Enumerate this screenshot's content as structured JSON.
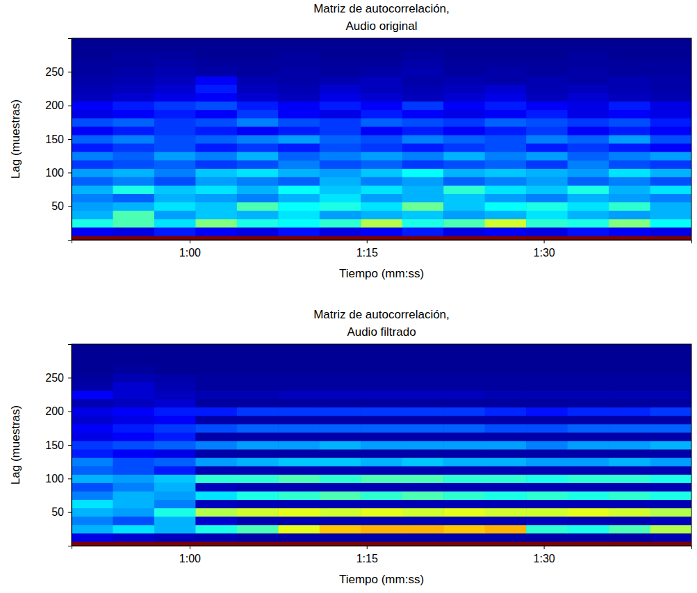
{
  "chart_data": [
    {
      "type": "heatmap",
      "title": [
        "Matriz de autocorrelación,",
        "Audio original"
      ],
      "x_label": "Tiempo (mm:ss)",
      "y_label": "Lag (muestras)",
      "color": "jet",
      "color_range": [
        0,
        1
      ],
      "xlim": [
        50,
        102.5
      ],
      "ylim": [
        0,
        300
      ],
      "xticks": [
        {
          "value": 60,
          "label": "1:00"
        },
        {
          "value": 75,
          "label": "1:15"
        },
        {
          "value": 90,
          "label": "1:30"
        }
      ],
      "yticks": [
        50,
        100,
        150,
        200,
        250
      ],
      "x": [
        51.75,
        55.25,
        58.75,
        62.25,
        65.75,
        69.25,
        72.75,
        76.25,
        79.75,
        83.25,
        86.75,
        90.25,
        93.75,
        97.25,
        100.75
      ],
      "y": [
        0,
        12.5,
        25,
        37.5,
        50,
        62.5,
        75,
        87.5,
        100,
        112.5,
        125,
        137.5,
        150,
        162.5,
        175,
        187.5,
        200,
        212.5,
        225,
        237.5,
        250,
        262.5,
        275,
        287.5,
        300
      ],
      "values": [
        [
          1,
          1,
          1,
          1,
          1,
          1,
          1,
          1,
          1,
          1,
          1,
          1,
          1,
          1,
          1
        ],
        [
          0.12,
          0.1,
          0.15,
          0.12,
          0.1,
          0.14,
          0.1,
          0.12,
          0.15,
          0.1,
          0.12,
          0.1,
          0.14,
          0.12,
          0.1
        ],
        [
          0.4,
          0.45,
          0.35,
          0.5,
          0.4,
          0.38,
          0.42,
          0.55,
          0.4,
          0.45,
          0.58,
          0.42,
          0.4,
          0.5,
          0.38
        ],
        [
          0.3,
          0.45,
          0.28,
          0.32,
          0.3,
          0.35,
          0.28,
          0.3,
          0.32,
          0.28,
          0.3,
          0.35,
          0.3,
          0.28,
          0.3
        ],
        [
          0.28,
          0.3,
          0.35,
          0.32,
          0.45,
          0.38,
          0.4,
          0.35,
          0.48,
          0.32,
          0.38,
          0.4,
          0.35,
          0.42,
          0.3
        ],
        [
          0.25,
          0.22,
          0.3,
          0.28,
          0.25,
          0.3,
          0.35,
          0.28,
          0.3,
          0.32,
          0.28,
          0.25,
          0.3,
          0.28,
          0.25
        ],
        [
          0.3,
          0.4,
          0.32,
          0.35,
          0.3,
          0.38,
          0.32,
          0.35,
          0.3,
          0.42,
          0.35,
          0.32,
          0.4,
          0.3,
          0.35
        ],
        [
          0.22,
          0.25,
          0.2,
          0.28,
          0.25,
          0.22,
          0.3,
          0.25,
          0.28,
          0.22,
          0.25,
          0.28,
          0.22,
          0.25,
          0.2
        ],
        [
          0.28,
          0.3,
          0.25,
          0.32,
          0.35,
          0.3,
          0.28,
          0.32,
          0.38,
          0.3,
          0.32,
          0.3,
          0.28,
          0.35,
          0.3
        ],
        [
          0.18,
          0.2,
          0.22,
          0.18,
          0.2,
          0.25,
          0.2,
          0.22,
          0.18,
          0.2,
          0.22,
          0.18,
          0.25,
          0.2,
          0.18
        ],
        [
          0.25,
          0.22,
          0.28,
          0.25,
          0.3,
          0.22,
          0.25,
          0.28,
          0.25,
          0.3,
          0.25,
          0.28,
          0.22,
          0.25,
          0.28
        ],
        [
          0.15,
          0.18,
          0.2,
          0.15,
          0.18,
          0.15,
          0.2,
          0.18,
          0.15,
          0.18,
          0.2,
          0.15,
          0.18,
          0.15,
          0.12
        ],
        [
          0.22,
          0.25,
          0.2,
          0.22,
          0.25,
          0.28,
          0.22,
          0.2,
          0.25,
          0.22,
          0.2,
          0.25,
          0.22,
          0.28,
          0.2
        ],
        [
          0.12,
          0.15,
          0.18,
          0.15,
          0.12,
          0.15,
          0.18,
          0.12,
          0.15,
          0.12,
          0.15,
          0.18,
          0.12,
          0.15,
          0.12
        ],
        [
          0.2,
          0.22,
          0.18,
          0.2,
          0.25,
          0.2,
          0.18,
          0.22,
          0.2,
          0.18,
          0.22,
          0.2,
          0.18,
          0.2,
          0.15
        ],
        [
          0.1,
          0.12,
          0.15,
          0.12,
          0.18,
          0.12,
          0.1,
          0.15,
          0.12,
          0.1,
          0.12,
          0.15,
          0.1,
          0.12,
          0.1
        ],
        [
          0.12,
          0.15,
          0.18,
          0.2,
          0.15,
          0.12,
          0.15,
          0.12,
          0.18,
          0.12,
          0.15,
          0.12,
          0.1,
          0.15,
          0.1
        ],
        [
          0.06,
          0.08,
          0.1,
          0.12,
          0.08,
          0.06,
          0.1,
          0.08,
          0.06,
          0.08,
          0.1,
          0.06,
          0.08,
          0.06,
          0.05
        ],
        [
          0.05,
          0.06,
          0.08,
          0.15,
          0.06,
          0.05,
          0.08,
          0.06,
          0.05,
          0.06,
          0.08,
          0.05,
          0.06,
          0.05,
          0.04
        ],
        [
          0.04,
          0.05,
          0.06,
          0.12,
          0.05,
          0.04,
          0.05,
          0.06,
          0.04,
          0.05,
          0.04,
          0.05,
          0.04,
          0.05,
          0.04
        ],
        [
          0.03,
          0.04,
          0.05,
          0.04,
          0.03,
          0.04,
          0.03,
          0.04,
          0.05,
          0.03,
          0.04,
          0.03,
          0.04,
          0.03,
          0.03
        ],
        [
          0.03,
          0.03,
          0.04,
          0.03,
          0.03,
          0.03,
          0.03,
          0.03,
          0.04,
          0.03,
          0.03,
          0.03,
          0.03,
          0.03,
          0.03
        ],
        [
          0.02,
          0.03,
          0.03,
          0.02,
          0.02,
          0.03,
          0.02,
          0.02,
          0.03,
          0.02,
          0.02,
          0.02,
          0.03,
          0.02,
          0.02
        ],
        [
          0.02,
          0.02,
          0.02,
          0.02,
          0.02,
          0.02,
          0.02,
          0.02,
          0.02,
          0.02,
          0.02,
          0.02,
          0.02,
          0.02,
          0.02
        ],
        [
          0.02,
          0.02,
          0.02,
          0.02,
          0.02,
          0.02,
          0.02,
          0.02,
          0.02,
          0.02,
          0.02,
          0.02,
          0.02,
          0.02,
          0.02
        ]
      ]
    },
    {
      "type": "heatmap",
      "title": [
        "Matriz de autocorrelación,",
        "Audio filtrado"
      ],
      "x_label": "Tiempo (mm:ss)",
      "y_label": "Lag (muestras)",
      "color": "jet",
      "color_range": [
        0,
        1
      ],
      "xlim": [
        50,
        102.5
      ],
      "ylim": [
        0,
        300
      ],
      "xticks": [
        {
          "value": 60,
          "label": "1:00"
        },
        {
          "value": 75,
          "label": "1:15"
        },
        {
          "value": 90,
          "label": "1:30"
        }
      ],
      "yticks": [
        50,
        100,
        150,
        200,
        250
      ],
      "x": [
        51.75,
        55.25,
        58.75,
        62.25,
        65.75,
        69.25,
        72.75,
        76.25,
        79.75,
        83.25,
        86.75,
        90.25,
        93.75,
        97.25,
        100.75
      ],
      "y": [
        0,
        12.5,
        25,
        37.5,
        50,
        62.5,
        75,
        87.5,
        100,
        112.5,
        125,
        137.5,
        150,
        162.5,
        175,
        187.5,
        200,
        212.5,
        225,
        237.5,
        250,
        262.5,
        275,
        287.5,
        300
      ],
      "values": [
        [
          1,
          1,
          1,
          1,
          1,
          1,
          1,
          1,
          1,
          1,
          1,
          1,
          1,
          1,
          1
        ],
        [
          0.1,
          0.08,
          0.06,
          0.05,
          0.04,
          0.04,
          0.04,
          0.04,
          0.04,
          0.04,
          0.04,
          0.04,
          0.04,
          0.04,
          0.05
        ],
        [
          0.3,
          0.35,
          0.3,
          0.4,
          0.45,
          0.6,
          0.68,
          0.7,
          0.7,
          0.68,
          0.7,
          0.42,
          0.4,
          0.45,
          0.55
        ],
        [
          0.25,
          0.2,
          0.3,
          0.08,
          0.05,
          0.05,
          0.05,
          0.05,
          0.05,
          0.05,
          0.05,
          0.06,
          0.05,
          0.05,
          0.06
        ],
        [
          0.3,
          0.28,
          0.4,
          0.55,
          0.58,
          0.6,
          0.58,
          0.6,
          0.58,
          0.6,
          0.58,
          0.58,
          0.6,
          0.58,
          0.55
        ],
        [
          0.35,
          0.3,
          0.25,
          0.06,
          0.05,
          0.05,
          0.05,
          0.05,
          0.05,
          0.05,
          0.05,
          0.05,
          0.05,
          0.05,
          0.05
        ],
        [
          0.25,
          0.3,
          0.28,
          0.35,
          0.4,
          0.42,
          0.45,
          0.42,
          0.45,
          0.42,
          0.4,
          0.42,
          0.4,
          0.42,
          0.4
        ],
        [
          0.2,
          0.25,
          0.3,
          0.06,
          0.05,
          0.05,
          0.05,
          0.05,
          0.05,
          0.05,
          0.05,
          0.05,
          0.05,
          0.05,
          0.05
        ],
        [
          0.3,
          0.28,
          0.32,
          0.42,
          0.42,
          0.45,
          0.42,
          0.45,
          0.45,
          0.42,
          0.42,
          0.4,
          0.42,
          0.42,
          0.4
        ],
        [
          0.22,
          0.2,
          0.15,
          0.05,
          0.05,
          0.05,
          0.05,
          0.05,
          0.05,
          0.05,
          0.05,
          0.05,
          0.05,
          0.05,
          0.05
        ],
        [
          0.25,
          0.2,
          0.22,
          0.28,
          0.3,
          0.32,
          0.32,
          0.3,
          0.32,
          0.3,
          0.3,
          0.28,
          0.28,
          0.3,
          0.28
        ],
        [
          0.15,
          0.12,
          0.1,
          0.04,
          0.04,
          0.04,
          0.04,
          0.04,
          0.04,
          0.04,
          0.04,
          0.04,
          0.04,
          0.04,
          0.04
        ],
        [
          0.18,
          0.2,
          0.22,
          0.25,
          0.28,
          0.28,
          0.3,
          0.28,
          0.28,
          0.28,
          0.28,
          0.25,
          0.28,
          0.28,
          0.3
        ],
        [
          0.1,
          0.12,
          0.15,
          0.04,
          0.04,
          0.04,
          0.04,
          0.04,
          0.04,
          0.04,
          0.04,
          0.04,
          0.04,
          0.04,
          0.04
        ],
        [
          0.12,
          0.15,
          0.18,
          0.2,
          0.22,
          0.22,
          0.22,
          0.22,
          0.22,
          0.22,
          0.2,
          0.2,
          0.22,
          0.22,
          0.22
        ],
        [
          0.08,
          0.1,
          0.12,
          0.04,
          0.04,
          0.04,
          0.04,
          0.04,
          0.04,
          0.04,
          0.04,
          0.04,
          0.04,
          0.04,
          0.04
        ],
        [
          0.1,
          0.12,
          0.15,
          0.15,
          0.18,
          0.18,
          0.18,
          0.18,
          0.18,
          0.18,
          0.16,
          0.14,
          0.16,
          0.16,
          0.18
        ],
        [
          0.05,
          0.06,
          0.08,
          0.03,
          0.03,
          0.03,
          0.03,
          0.03,
          0.03,
          0.03,
          0.03,
          0.03,
          0.03,
          0.03,
          0.03
        ],
        [
          0.12,
          0.08,
          0.06,
          0.05,
          0.05,
          0.06,
          0.06,
          0.06,
          0.06,
          0.06,
          0.05,
          0.05,
          0.05,
          0.05,
          0.05
        ],
        [
          0.04,
          0.08,
          0.05,
          0.03,
          0.03,
          0.03,
          0.03,
          0.03,
          0.03,
          0.03,
          0.03,
          0.03,
          0.03,
          0.03,
          0.03
        ],
        [
          0.03,
          0.05,
          0.04,
          0.03,
          0.03,
          0.03,
          0.03,
          0.03,
          0.03,
          0.03,
          0.03,
          0.03,
          0.03,
          0.03,
          0.03
        ],
        [
          0.02,
          0.03,
          0.02,
          0.02,
          0.02,
          0.02,
          0.02,
          0.02,
          0.02,
          0.02,
          0.02,
          0.02,
          0.02,
          0.02,
          0.02
        ],
        [
          0.02,
          0.02,
          0.02,
          0.02,
          0.02,
          0.02,
          0.02,
          0.02,
          0.02,
          0.02,
          0.02,
          0.02,
          0.02,
          0.02,
          0.02
        ],
        [
          0.02,
          0.02,
          0.02,
          0.02,
          0.02,
          0.02,
          0.02,
          0.02,
          0.02,
          0.02,
          0.02,
          0.02,
          0.02,
          0.02,
          0.02
        ],
        [
          0.02,
          0.02,
          0.02,
          0.02,
          0.02,
          0.02,
          0.02,
          0.02,
          0.02,
          0.02,
          0.02,
          0.02,
          0.02,
          0.02,
          0.02
        ]
      ]
    }
  ]
}
